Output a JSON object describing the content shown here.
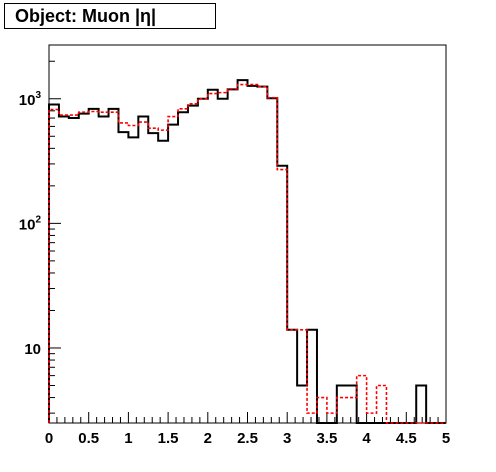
{
  "chart_data": {
    "type": "histogram",
    "title": "Object: Muon |η|",
    "xlabel": "",
    "ylabel": "",
    "x_range": [
      0,
      5
    ],
    "y_scale": "log",
    "y_range": [
      2.5,
      2700
    ],
    "bin_width": 0.125,
    "x_tick_labels": [
      "0",
      "0.5",
      "1",
      "1.5",
      "2",
      "2.5",
      "3",
      "3.5",
      "4",
      "4.5",
      "5"
    ],
    "y_tick_labels": [
      {
        "value": 1000,
        "base": "10",
        "exp": "3"
      },
      {
        "value": 100,
        "base": "10",
        "exp": "2"
      },
      {
        "value": 10,
        "base": "10",
        "exp": ""
      }
    ],
    "series": [
      {
        "color": "#000000",
        "style": "solid",
        "values": [
          900,
          720,
          700,
          760,
          830,
          720,
          830,
          540,
          490,
          720,
          530,
          460,
          620,
          780,
          880,
          1000,
          1180,
          1000,
          1190,
          1410,
          1270,
          1250,
          1010,
          290,
          14,
          5,
          14,
          0,
          0,
          5,
          5,
          0,
          0,
          0,
          0,
          0,
          0,
          5,
          0,
          0
        ]
      },
      {
        "color": "#ff0000",
        "style": "dashed",
        "values": [
          820,
          740,
          740,
          780,
          790,
          780,
          780,
          640,
          610,
          650,
          580,
          560,
          720,
          830,
          910,
          1000,
          1100,
          1120,
          1200,
          1300,
          1300,
          1250,
          1020,
          270,
          14,
          14,
          3,
          4,
          3,
          4,
          4,
          6,
          3,
          5,
          0,
          0,
          0,
          0,
          0,
          0
        ]
      }
    ]
  }
}
